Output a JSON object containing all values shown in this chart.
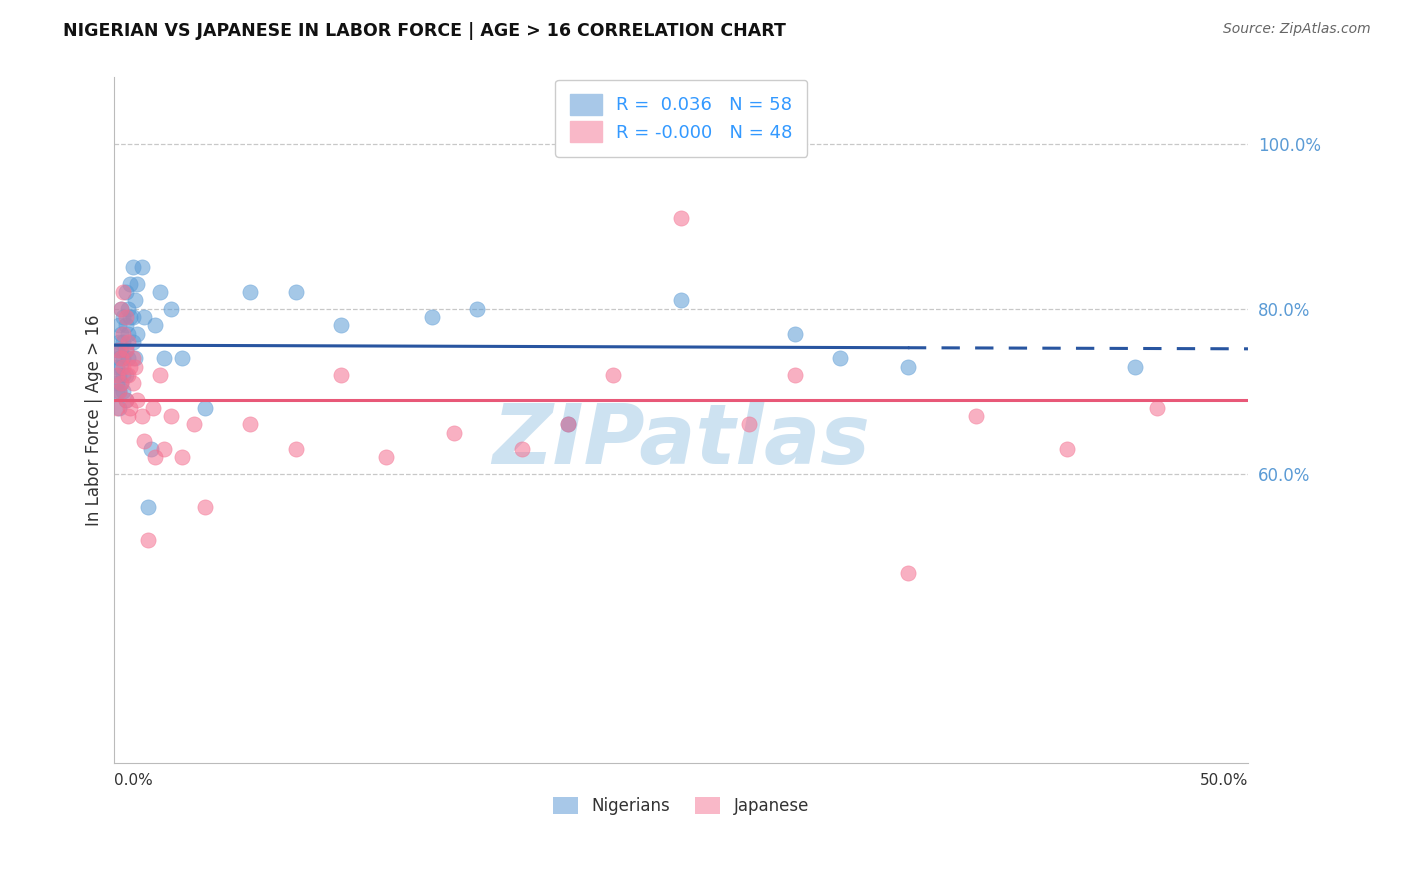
{
  "title": "NIGERIAN VS JAPANESE IN LABOR FORCE | AGE > 16 CORRELATION CHART",
  "source": "Source: ZipAtlas.com",
  "ylabel": "In Labor Force | Age > 16",
  "ylabel_right_ticks": [
    "60.0%",
    "80.0%",
    "100.0%"
  ],
  "ylabel_right_vals": [
    0.6,
    0.8,
    1.0
  ],
  "xlim": [
    0.0,
    0.5
  ],
  "ylim": [
    0.25,
    1.08
  ],
  "bottom_legend": [
    "Nigerians",
    "Japanese"
  ],
  "bottom_legend_colors": [
    "#a8c8e8",
    "#f9b8c8"
  ],
  "watermark": "ZIPatlas",
  "watermark_color": "#c8dff0",
  "grid_color": "#c8c8c8",
  "blue_color": "#5b9bd5",
  "pink_color": "#f47090",
  "blue_line_color": "#2855a0",
  "pink_line_color": "#e85878",
  "blue_line_solid_end": 0.35,
  "legend_r_color": "#3399ff",
  "legend_n_color": "#3399ff",
  "nigerians_x": [
    0.001,
    0.001,
    0.001,
    0.001,
    0.002,
    0.002,
    0.002,
    0.002,
    0.002,
    0.002,
    0.003,
    0.003,
    0.003,
    0.003,
    0.003,
    0.004,
    0.004,
    0.004,
    0.004,
    0.004,
    0.005,
    0.005,
    0.005,
    0.005,
    0.005,
    0.006,
    0.006,
    0.006,
    0.007,
    0.007,
    0.008,
    0.008,
    0.008,
    0.009,
    0.009,
    0.01,
    0.01,
    0.012,
    0.013,
    0.015,
    0.016,
    0.018,
    0.02,
    0.022,
    0.025,
    0.03,
    0.04,
    0.06,
    0.08,
    0.1,
    0.14,
    0.16,
    0.2,
    0.25,
    0.3,
    0.32,
    0.35,
    0.45
  ],
  "nigerians_y": [
    0.73,
    0.71,
    0.75,
    0.7,
    0.74,
    0.76,
    0.72,
    0.68,
    0.7,
    0.78,
    0.75,
    0.8,
    0.73,
    0.71,
    0.77,
    0.76,
    0.74,
    0.79,
    0.72,
    0.7,
    0.78,
    0.75,
    0.72,
    0.82,
    0.69,
    0.77,
    0.8,
    0.74,
    0.79,
    0.83,
    0.76,
    0.85,
    0.79,
    0.81,
    0.74,
    0.83,
    0.77,
    0.85,
    0.79,
    0.56,
    0.63,
    0.78,
    0.82,
    0.74,
    0.8,
    0.74,
    0.68,
    0.82,
    0.82,
    0.78,
    0.79,
    0.8,
    0.66,
    0.81,
    0.77,
    0.74,
    0.73,
    0.73
  ],
  "japanese_x": [
    0.001,
    0.001,
    0.002,
    0.002,
    0.003,
    0.003,
    0.003,
    0.004,
    0.004,
    0.004,
    0.005,
    0.005,
    0.005,
    0.006,
    0.006,
    0.006,
    0.007,
    0.007,
    0.008,
    0.008,
    0.009,
    0.01,
    0.012,
    0.013,
    0.015,
    0.017,
    0.018,
    0.02,
    0.022,
    0.025,
    0.03,
    0.035,
    0.04,
    0.06,
    0.08,
    0.1,
    0.12,
    0.15,
    0.18,
    0.2,
    0.22,
    0.25,
    0.28,
    0.3,
    0.35,
    0.38,
    0.42,
    0.46
  ],
  "japanese_y": [
    0.72,
    0.68,
    0.75,
    0.7,
    0.8,
    0.74,
    0.71,
    0.77,
    0.73,
    0.82,
    0.75,
    0.69,
    0.79,
    0.72,
    0.67,
    0.76,
    0.73,
    0.68,
    0.74,
    0.71,
    0.73,
    0.69,
    0.67,
    0.64,
    0.52,
    0.68,
    0.62,
    0.72,
    0.63,
    0.67,
    0.62,
    0.66,
    0.56,
    0.66,
    0.63,
    0.72,
    0.62,
    0.65,
    0.63,
    0.66,
    0.72,
    0.91,
    0.66,
    0.72,
    0.48,
    0.67,
    0.63,
    0.68
  ],
  "blue_scatter_size": 120,
  "pink_scatter_size": 120,
  "blue_scatter_alpha": 0.55,
  "pink_scatter_alpha": 0.55
}
